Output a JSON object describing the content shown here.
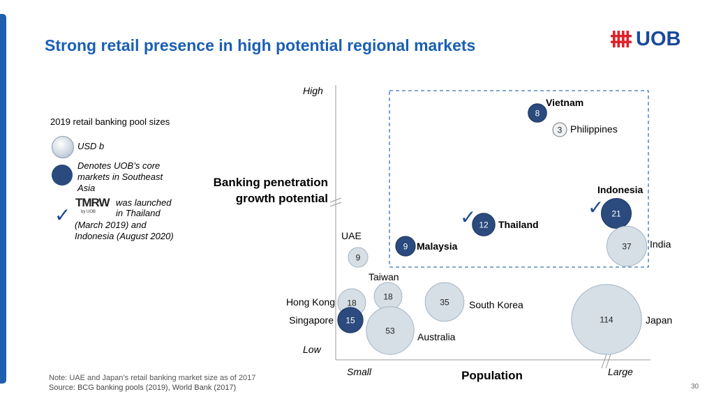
{
  "slide": {
    "title": "Strong retail presence in high potential regional markets",
    "logo_text": "UOB",
    "page_number": "30"
  },
  "legend": {
    "heading": "2019 retail banking pool sizes",
    "size_item": "USD b",
    "core_item": "Denotes UOB’s core markets in Southeast Asia",
    "tmrw_brand": "TMRW",
    "tmrw_sub": "by UOB",
    "tmrw_text_right": [
      "was launched",
      "in Thailand"
    ],
    "tmrw_text_below": [
      "(March 2019) and",
      "Indonesia (August 2020)"
    ]
  },
  "footnotes": {
    "note": "Note: UAE and Japan’s retail banking market size as of 2017",
    "source": "Source: BCG banking pools (2019), World Bank (2017)"
  },
  "colors": {
    "title": "#1a5fb4",
    "core_bubble": "#2b4a7e",
    "other_bubble": "#d6dfe6",
    "highlight_box": "#3f6fb0",
    "check": "#1f4b8f"
  },
  "chart_data": {
    "type": "bubble",
    "xlabel": "Population",
    "ylabel": "Banking penetration growth potential",
    "x_axis_ends": [
      "Small",
      "Large"
    ],
    "y_axis_ends": [
      "Low",
      "High"
    ],
    "grid": false,
    "highlight_region": "dashed box around high-potential markets",
    "bubbles": [
      {
        "label": "Vietnam",
        "value": 8,
        "core": true,
        "check": false,
        "bold": true
      },
      {
        "label": "Philippines",
        "value": 3,
        "core": false,
        "check": false,
        "bold": false
      },
      {
        "label": "Indonesia",
        "value": 21,
        "core": true,
        "check": true,
        "bold": true
      },
      {
        "label": "Thailand",
        "value": 12,
        "core": true,
        "check": true,
        "bold": true
      },
      {
        "label": "Malaysia",
        "value": 9,
        "core": true,
        "check": false,
        "bold": true
      },
      {
        "label": "India",
        "value": 37,
        "core": false,
        "check": false,
        "bold": false
      },
      {
        "label": "UAE",
        "value": 9,
        "core": false,
        "check": false,
        "bold": false
      },
      {
        "label": "Taiwan",
        "value": 18,
        "core": false,
        "check": false,
        "bold": false
      },
      {
        "label": "Hong Kong",
        "value": 18,
        "core": false,
        "check": false,
        "bold": false
      },
      {
        "label": "Singapore",
        "value": 15,
        "core": true,
        "check": false,
        "bold": false
      },
      {
        "label": "South Korea",
        "value": 35,
        "core": false,
        "check": false,
        "bold": false
      },
      {
        "label": "Australia",
        "value": 53,
        "core": false,
        "check": false,
        "bold": false
      },
      {
        "label": "Japan",
        "value": 114,
        "core": false,
        "check": false,
        "bold": false
      }
    ]
  }
}
